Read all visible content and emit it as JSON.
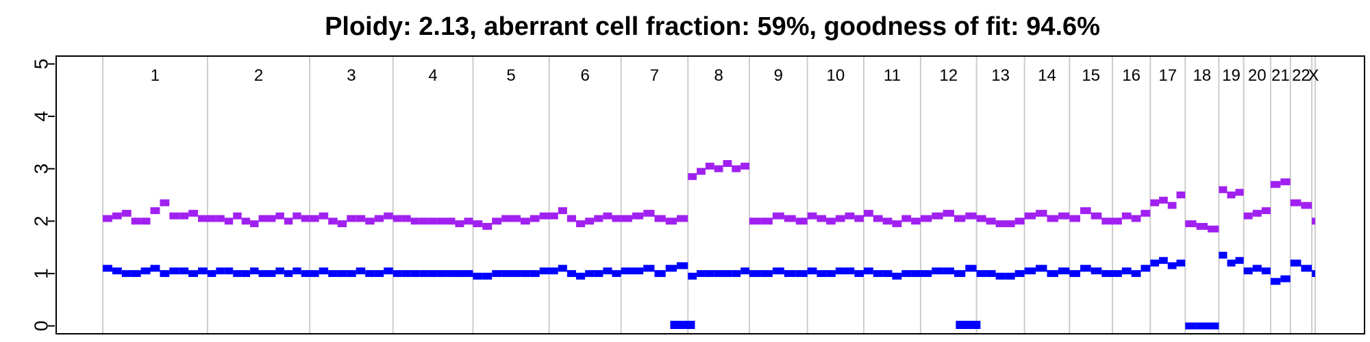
{
  "chart_data": {
    "type": "scatter",
    "title": "Ploidy: 2.13, aberrant cell fraction: 59%, goodness of fit: 94.6%",
    "xlabel": "",
    "ylabel": "",
    "ylim": [
      -0.15,
      5.15
    ],
    "y_ticks": [
      0,
      1,
      2,
      3,
      4,
      5
    ],
    "grid": "vertical chromosome boundaries",
    "chromosomes": [
      "1",
      "2",
      "3",
      "4",
      "5",
      "6",
      "7",
      "8",
      "9",
      "10",
      "11",
      "12",
      "13",
      "14",
      "15",
      "16",
      "17",
      "18",
      "19",
      "20",
      "21",
      "22",
      "X"
    ],
    "chromosome_lengths": [
      249,
      243,
      198,
      190,
      181,
      171,
      159,
      146,
      138,
      134,
      135,
      133,
      114,
      107,
      102,
      90,
      83,
      80,
      59,
      64,
      47,
      51,
      8
    ],
    "series": [
      {
        "color": "#a020f0",
        "segments": [
          {
            "chrom": "1",
            "values": [
              2.05,
              2.1,
              2.15,
              2.0,
              2.0,
              2.2,
              2.35,
              2.1,
              2.1,
              2.15,
              2.05
            ]
          },
          {
            "chrom": "2",
            "values": [
              2.05,
              2.05,
              2.0,
              2.1,
              2.0,
              1.95,
              2.05,
              2.05,
              2.1,
              2.0,
              2.1,
              2.05
            ]
          },
          {
            "chrom": "3",
            "values": [
              2.05,
              2.1,
              2.0,
              1.95,
              2.05,
              2.05,
              2.0,
              2.05,
              2.1
            ]
          },
          {
            "chrom": "4",
            "values": [
              2.05,
              2.05,
              2.0,
              2.0,
              2.0,
              2.0,
              2.0,
              1.95,
              2.0
            ]
          },
          {
            "chrom": "5",
            "values": [
              1.95,
              1.9,
              2.0,
              2.05,
              2.05,
              2.0,
              2.05,
              2.1
            ]
          },
          {
            "chrom": "6",
            "values": [
              2.1,
              2.2,
              2.05,
              1.95,
              2.0,
              2.05,
              2.1,
              2.05
            ]
          },
          {
            "chrom": "7",
            "values": [
              2.05,
              2.1,
              2.15,
              2.05,
              2.0,
              2.05
            ]
          },
          {
            "chrom": "8",
            "values": [
              2.85,
              2.95,
              3.05,
              3.0,
              3.1,
              3.0,
              3.05
            ]
          },
          {
            "chrom": "9",
            "values": [
              2.0,
              2.0,
              2.1,
              2.05,
              2.0
            ]
          },
          {
            "chrom": "10",
            "values": [
              2.1,
              2.05,
              2.0,
              2.05,
              2.1,
              2.05
            ]
          },
          {
            "chrom": "11",
            "values": [
              2.15,
              2.05,
              2.0,
              1.95,
              2.05,
              2.0
            ]
          },
          {
            "chrom": "12",
            "values": [
              2.05,
              2.1,
              2.15,
              2.05,
              2.1
            ]
          },
          {
            "chrom": "13",
            "values": [
              2.05,
              2.0,
              1.95,
              1.95,
              2.0
            ]
          },
          {
            "chrom": "14",
            "values": [
              2.1,
              2.15,
              2.05,
              2.1
            ]
          },
          {
            "chrom": "15",
            "values": [
              2.05,
              2.2,
              2.1,
              2.0
            ]
          },
          {
            "chrom": "16",
            "values": [
              2.0,
              2.1,
              2.05,
              2.15
            ]
          },
          {
            "chrom": "17",
            "values": [
              2.35,
              2.4,
              2.3,
              2.5
            ]
          },
          {
            "chrom": "18",
            "values": [
              1.95,
              1.9,
              1.85
            ]
          },
          {
            "chrom": "19",
            "values": [
              2.6,
              2.5,
              2.55
            ]
          },
          {
            "chrom": "20",
            "values": [
              2.1,
              2.15,
              2.2
            ]
          },
          {
            "chrom": "21",
            "values": [
              2.7,
              2.75
            ]
          },
          {
            "chrom": "22",
            "values": [
              2.35,
              2.3
            ]
          },
          {
            "chrom": "X",
            "values": [
              2.0
            ]
          }
        ]
      },
      {
        "color": "#0000ff",
        "segments": [
          {
            "chrom": "1",
            "values": [
              1.1,
              1.05,
              1.0,
              1.0,
              1.05,
              1.1,
              1.0,
              1.05,
              1.05,
              1.0,
              1.05
            ]
          },
          {
            "chrom": "2",
            "values": [
              1.0,
              1.05,
              1.05,
              1.0,
              1.0,
              1.05,
              1.0,
              1.0,
              1.05,
              1.0,
              1.05,
              1.0
            ]
          },
          {
            "chrom": "3",
            "values": [
              1.0,
              1.05,
              1.0,
              1.0,
              1.0,
              1.05,
              1.0,
              1.0,
              1.05
            ]
          },
          {
            "chrom": "4",
            "values": [
              1.0,
              1.0,
              1.0,
              1.0,
              1.0,
              1.0,
              1.0,
              1.0,
              1.0
            ]
          },
          {
            "chrom": "5",
            "values": [
              0.95,
              0.95,
              1.0,
              1.0,
              1.0,
              1.0,
              1.0,
              1.05
            ]
          },
          {
            "chrom": "6",
            "values": [
              1.05,
              1.1,
              1.0,
              0.95,
              1.0,
              1.0,
              1.05,
              1.0
            ]
          },
          {
            "chrom": "7",
            "values": [
              1.05,
              1.05,
              1.1,
              1.0,
              1.1,
              1.15
            ]
          },
          {
            "chrom": "8",
            "values": [
              0.95,
              1.0,
              1.0,
              1.0,
              1.0,
              1.0,
              1.05
            ]
          },
          {
            "chrom": "9",
            "values": [
              1.0,
              1.0,
              1.05,
              1.0,
              1.0
            ]
          },
          {
            "chrom": "10",
            "values": [
              1.05,
              1.0,
              1.0,
              1.05,
              1.05,
              1.0
            ]
          },
          {
            "chrom": "11",
            "values": [
              1.05,
              1.0,
              1.0,
              0.95,
              1.0,
              1.0
            ]
          },
          {
            "chrom": "12",
            "values": [
              1.0,
              1.05,
              1.05,
              1.0,
              1.1
            ]
          },
          {
            "chrom": "13",
            "values": [
              1.0,
              1.0,
              0.95,
              0.95,
              1.0
            ]
          },
          {
            "chrom": "14",
            "values": [
              1.05,
              1.1,
              1.0,
              1.05
            ]
          },
          {
            "chrom": "15",
            "values": [
              1.0,
              1.1,
              1.05,
              1.0
            ]
          },
          {
            "chrom": "16",
            "values": [
              1.0,
              1.05,
              1.0,
              1.1
            ]
          },
          {
            "chrom": "17",
            "values": [
              1.2,
              1.25,
              1.15,
              1.2
            ]
          },
          {
            "chrom": "18",
            "values": [
              0.0,
              0.0,
              0.0
            ]
          },
          {
            "chrom": "19",
            "values": [
              1.35,
              1.2,
              1.25
            ]
          },
          {
            "chrom": "20",
            "values": [
              1.05,
              1.1,
              1.05
            ]
          },
          {
            "chrom": "21",
            "values": [
              0.85,
              0.9
            ]
          },
          {
            "chrom": "22",
            "values": [
              1.2,
              1.1
            ]
          },
          {
            "chrom": "X",
            "values": [
              1.0
            ]
          }
        ]
      }
    ],
    "extra_segments": [
      {
        "color": "#0000ff",
        "chrom": "7",
        "position": 0.92,
        "value": 0.02
      },
      {
        "color": "#0000ff",
        "chrom": "12",
        "position": 0.85,
        "value": 0.02
      }
    ]
  }
}
